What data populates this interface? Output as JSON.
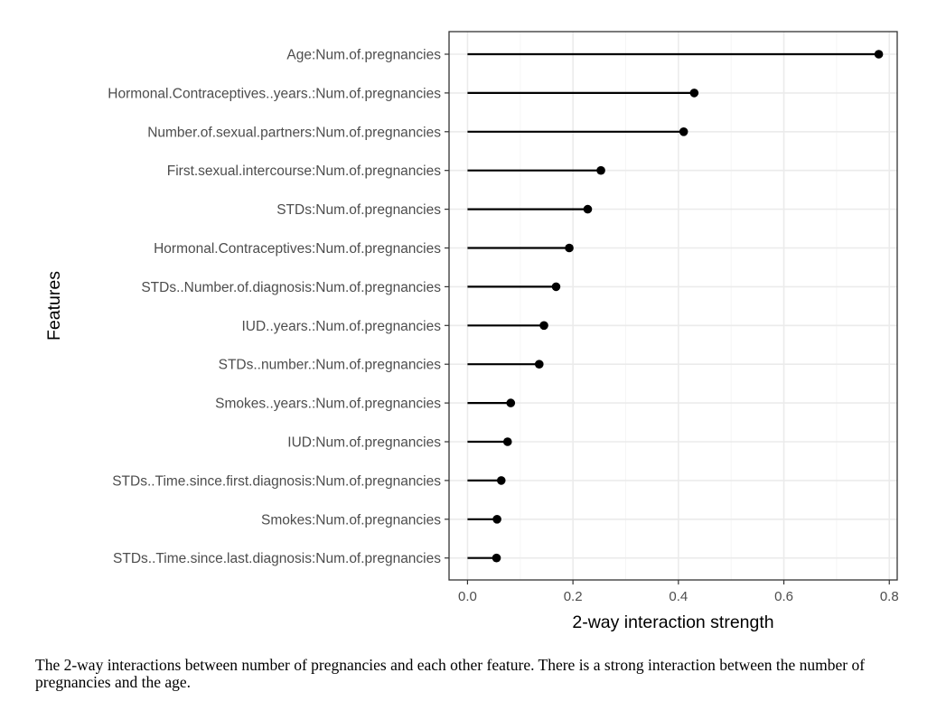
{
  "chart_data": {
    "type": "lollipop",
    "orientation": "horizontal",
    "xlabel": "2-way interaction strength",
    "ylabel": "Features",
    "xlim": [
      -0.035,
      0.815
    ],
    "xticks": [
      "0.0",
      "0.2",
      "0.4",
      "0.6",
      "0.8"
    ],
    "xtick_values": [
      0.0,
      0.2,
      0.4,
      0.6,
      0.8
    ],
    "grid": true,
    "categories": [
      "Age:Num.of.pregnancies",
      "Hormonal.Contraceptives..years.:Num.of.pregnancies",
      "Number.of.sexual.partners:Num.of.pregnancies",
      "First.sexual.intercourse:Num.of.pregnancies",
      "STDs:Num.of.pregnancies",
      "Hormonal.Contraceptives:Num.of.pregnancies",
      "STDs..Number.of.diagnosis:Num.of.pregnancies",
      "IUD..years.:Num.of.pregnancies",
      "STDs..number.:Num.of.pregnancies",
      "Smokes..years.:Num.of.pregnancies",
      "IUD:Num.of.pregnancies",
      "STDs..Time.since.first.diagnosis:Num.of.pregnancies",
      "Smokes:Num.of.pregnancies",
      "STDs..Time.since.last.diagnosis:Num.of.pregnancies"
    ],
    "values": [
      0.78,
      0.43,
      0.41,
      0.253,
      0.228,
      0.193,
      0.168,
      0.145,
      0.136,
      0.082,
      0.076,
      0.064,
      0.056,
      0.055
    ],
    "colors": {
      "mark": "#000000",
      "grid_major": "#ebebeb",
      "grid_minor": "#f5f5f5",
      "panel_border": "#333333"
    }
  },
  "caption": "The 2-way interactions between number of pregnancies and each other feature. There is a strong interaction between the number of pregnancies and the age."
}
